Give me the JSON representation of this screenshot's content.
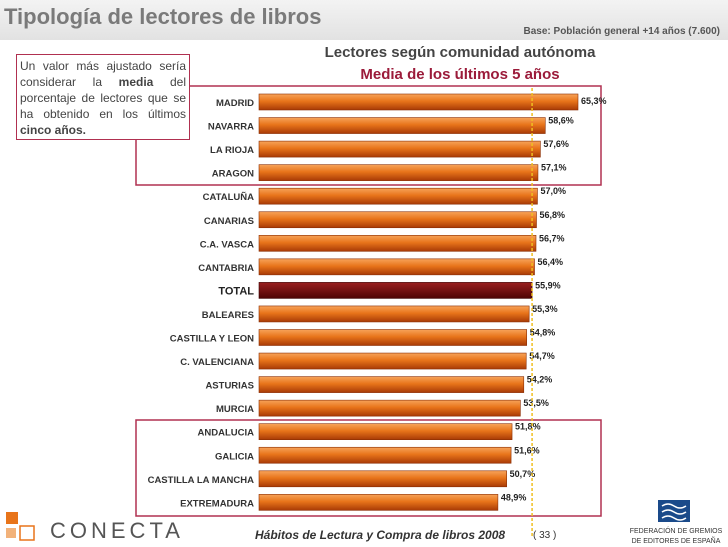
{
  "header": {
    "title": "Tipología de lectores de libros",
    "base_note": "Base: Población general +14 años (7.600)"
  },
  "chart_titles": {
    "line1": "Lectores según comunidad autónoma",
    "line2": "Media de los últimos 5 años"
  },
  "note": {
    "part1": "Un valor más ajustado sería considerar la",
    "bold1": "media",
    "part2": "del porcentaje de lectores que se ha obtenido en los últimos",
    "bold2": "cinco años."
  },
  "chart_data": {
    "type": "bar",
    "orientation": "horizontal",
    "categories": [
      "MADRID",
      "NAVARRA",
      "LA RIOJA",
      "ARAGON",
      "CATALUÑA",
      "CANARIAS",
      "C.A. VASCA",
      "CANTABRIA",
      "TOTAL",
      "BALEARES",
      "CASTILLA Y LEON",
      "C. VALENCIANA",
      "ASTURIAS",
      "MURCIA",
      "ANDALUCIA",
      "GALICIA",
      "CASTILLA LA MANCHA",
      "EXTREMADURA"
    ],
    "values": [
      65.3,
      58.6,
      57.6,
      57.1,
      57.0,
      56.8,
      56.7,
      56.4,
      55.9,
      55.3,
      54.8,
      54.7,
      54.2,
      53.5,
      51.8,
      51.6,
      50.7,
      48.9
    ],
    "labels": [
      "65,3%",
      "58,6%",
      "57,6%",
      "57,1%",
      "57,0%",
      "56,8%",
      "56,7%",
      "56,4%",
      "55,9%",
      "55,3%",
      "54,8%",
      "54,7%",
      "54,2%",
      "53,5%",
      "51,8%",
      "51,6%",
      "50,7%",
      "48,9%"
    ],
    "highlight_category": "TOTAL",
    "reference_line_value": 55.9,
    "xlim": [
      0,
      65.3
    ],
    "colors": {
      "bar": "#e8741a",
      "bar_dark": "#a83a06",
      "total": "#7a0a0a",
      "reference": "#f0c020",
      "box": "#b03050"
    }
  },
  "footer": {
    "title": "Hábitos de Lectura y Compra de libros 2008",
    "page": "( 33 )",
    "logo_left": "CONECTA",
    "logo_right_line1": "FEDERACIÓN DE GREMIOS",
    "logo_right_line2": "DE EDITORES DE ESPAÑA"
  }
}
